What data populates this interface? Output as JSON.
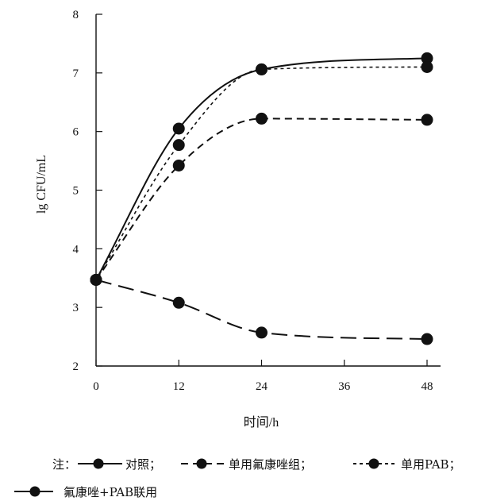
{
  "chart_data": {
    "type": "line",
    "xlabel": "时间/h",
    "ylabel": "lg CFU/mL",
    "x": [
      0,
      12,
      24,
      48
    ],
    "xticks": [
      0,
      12,
      24,
      36,
      48
    ],
    "yticks": [
      2,
      3,
      4,
      5,
      6,
      7,
      8
    ],
    "xlim": [
      0,
      48
    ],
    "ylim": [
      2,
      8
    ],
    "grid": false,
    "legend_position": "bottom",
    "series": [
      {
        "name": "对照",
        "style": "solid",
        "values": [
          3.47,
          6.05,
          7.06,
          7.25
        ]
      },
      {
        "name": "单用氟康唑组",
        "style": "dashed",
        "values": [
          3.47,
          5.42,
          6.22,
          6.2
        ]
      },
      {
        "name": "单用PAB",
        "style": "dotted",
        "values": [
          3.47,
          5.77,
          7.06,
          7.1
        ]
      },
      {
        "name": "氟康唑+PAB联用",
        "style": "longdash",
        "values": [
          3.47,
          3.08,
          2.57,
          2.46
        ]
      }
    ]
  },
  "legend": {
    "prefix": "注：",
    "separator": "；",
    "items": [
      "对照",
      "单用氟康唑组",
      "单用PAB",
      "氟康唑+PAB联用"
    ]
  },
  "colors": {
    "line": "#111111",
    "background": "#ffffff"
  }
}
